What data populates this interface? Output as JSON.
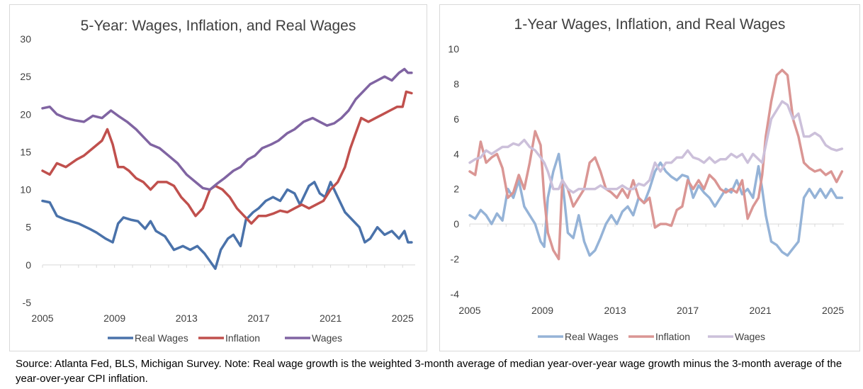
{
  "chart_data": [
    {
      "type": "line",
      "title": "5-Year: Wages, Inflation, and Real Wages",
      "xlabel": "",
      "ylabel": "",
      "xlim": [
        2005,
        2025.7
      ],
      "ylim": [
        -5,
        30
      ],
      "y_ticks": [
        "-5",
        "0",
        "5",
        "10",
        "15",
        "20",
        "25",
        "30"
      ],
      "x_ticks": [
        "2005",
        "2009",
        "2013",
        "2017",
        "2021",
        "2025"
      ],
      "legend_position": "bottom",
      "series": [
        {
          "name": "Real Wages",
          "color": "#4a72aa",
          "x": [
            2005,
            2005.4,
            2005.8,
            2006.3,
            2007,
            2007.6,
            2008,
            2008.5,
            2008.9,
            2009.2,
            2009.5,
            2009.9,
            2010.3,
            2010.7,
            2011,
            2011.3,
            2011.8,
            2012.3,
            2012.8,
            2013.2,
            2013.6,
            2014.0,
            2014.3,
            2014.6,
            2014.9,
            2015.3,
            2015.6,
            2016.0,
            2016.3,
            2016.7,
            2017.0,
            2017.4,
            2017.8,
            2018.2,
            2018.6,
            2019.0,
            2019.3,
            2019.8,
            2020.1,
            2020.4,
            2020.7,
            2021.0,
            2021.4,
            2021.8,
            2022.2,
            2022.6,
            2022.9,
            2023.2,
            2023.6,
            2024.0,
            2024.4,
            2024.8,
            2025.1,
            2025.3,
            2025.5
          ],
          "values": [
            8.5,
            8.3,
            6.5,
            6.0,
            5.5,
            4.8,
            4.3,
            3.5,
            3.0,
            5.5,
            6.3,
            6.0,
            5.8,
            4.8,
            5.8,
            4.5,
            3.8,
            2.0,
            2.5,
            2.0,
            2.5,
            1.5,
            0.5,
            -0.5,
            2.0,
            3.5,
            4.0,
            2.5,
            6.0,
            7.0,
            7.5,
            8.5,
            9.0,
            8.5,
            10.0,
            9.5,
            8.0,
            10.5,
            11.0,
            9.5,
            9.0,
            11.0,
            9.0,
            7.0,
            6.0,
            5.0,
            3.0,
            3.5,
            5.0,
            4.0,
            4.5,
            3.5,
            4.5,
            3.0,
            3.0
          ]
        },
        {
          "name": "Inflation",
          "color": "#c0504d",
          "x": [
            2005,
            2005.4,
            2005.8,
            2006.3,
            2006.9,
            2007.3,
            2007.8,
            2008.3,
            2008.6,
            2008.9,
            2009.2,
            2009.5,
            2009.8,
            2010.2,
            2010.6,
            2011.0,
            2011.4,
            2011.9,
            2012.3,
            2012.7,
            2013.1,
            2013.5,
            2013.9,
            2014.3,
            2014.6,
            2015.0,
            2015.4,
            2015.8,
            2016.2,
            2016.6,
            2017.0,
            2017.4,
            2017.8,
            2018.2,
            2018.6,
            2019.0,
            2019.4,
            2019.8,
            2020.2,
            2020.6,
            2021.0,
            2021.4,
            2021.8,
            2022.1,
            2022.4,
            2022.7,
            2023.1,
            2023.5,
            2023.9,
            2024.3,
            2024.7,
            2025.0,
            2025.2,
            2025.5
          ],
          "values": [
            12.5,
            12.0,
            13.5,
            13.0,
            14.0,
            14.5,
            15.5,
            16.5,
            18.0,
            16.0,
            13.0,
            13.0,
            12.5,
            11.5,
            11.0,
            10.0,
            11.0,
            11.0,
            10.5,
            9.0,
            8.0,
            6.5,
            7.5,
            10.0,
            10.5,
            10.0,
            9.0,
            7.5,
            6.5,
            5.5,
            6.5,
            6.5,
            6.8,
            7.2,
            7.0,
            7.5,
            8.0,
            7.5,
            8.0,
            8.5,
            10.0,
            11.0,
            13.0,
            15.5,
            17.5,
            19.5,
            19.0,
            19.5,
            20.0,
            20.5,
            21.0,
            21.0,
            23.0,
            22.8
          ]
        },
        {
          "name": "Wages",
          "color": "#8064a2",
          "x": [
            2005,
            2005.4,
            2005.8,
            2006.3,
            2006.8,
            2007.3,
            2007.8,
            2008.3,
            2008.8,
            2009.2,
            2009.7,
            2010.2,
            2010.6,
            2011.0,
            2011.5,
            2012.0,
            2012.5,
            2013.0,
            2013.5,
            2013.9,
            2014.3,
            2014.7,
            2015.1,
            2015.6,
            2016.0,
            2016.4,
            2016.8,
            2017.2,
            2017.7,
            2018.1,
            2018.6,
            2019.0,
            2019.5,
            2020.0,
            2020.4,
            2020.8,
            2021.2,
            2021.6,
            2022.0,
            2022.4,
            2022.8,
            2023.2,
            2023.6,
            2024.0,
            2024.4,
            2024.8,
            2025.1,
            2025.3,
            2025.5
          ],
          "values": [
            20.8,
            21.0,
            20.0,
            19.5,
            19.2,
            19.0,
            19.8,
            19.5,
            20.5,
            19.8,
            19.0,
            18.0,
            17.0,
            16.0,
            15.5,
            14.5,
            13.5,
            12.0,
            11.0,
            10.2,
            10.0,
            10.8,
            11.5,
            12.5,
            13.0,
            14.0,
            14.5,
            15.5,
            16.0,
            16.5,
            17.5,
            18.0,
            19.0,
            19.5,
            19.0,
            18.5,
            18.8,
            19.5,
            20.5,
            22.0,
            23.0,
            24.0,
            24.5,
            25.0,
            24.5,
            25.5,
            26.0,
            25.5,
            25.5
          ]
        }
      ]
    },
    {
      "type": "line",
      "title": "1-Year Wages, Inflation, and Real Wages",
      "xlabel": "",
      "ylabel": "",
      "xlim": [
        2005,
        2025.6
      ],
      "ylim": [
        -4,
        10
      ],
      "y_ticks": [
        "-4",
        "-2",
        "0",
        "2",
        "4",
        "6",
        "8",
        "10"
      ],
      "x_ticks": [
        "2005",
        "2009",
        "2013",
        "2017",
        "2021",
        "2025"
      ],
      "legend_position": "bottom",
      "series": [
        {
          "name": "Real Wages",
          "color": "#95b3d7",
          "x": [
            2005,
            2005.3,
            2005.6,
            2005.9,
            2006.2,
            2006.5,
            2006.8,
            2007.1,
            2007.4,
            2007.7,
            2008.0,
            2008.3,
            2008.6,
            2008.9,
            2009.1,
            2009.3,
            2009.6,
            2009.9,
            2010.1,
            2010.4,
            2010.7,
            2011.0,
            2011.3,
            2011.6,
            2011.9,
            2012.2,
            2012.5,
            2012.8,
            2013.1,
            2013.4,
            2013.7,
            2014.0,
            2014.3,
            2014.6,
            2014.9,
            2015.2,
            2015.5,
            2015.8,
            2016.1,
            2016.4,
            2016.7,
            2017.0,
            2017.3,
            2017.6,
            2017.9,
            2018.2,
            2018.5,
            2018.8,
            2019.1,
            2019.4,
            2019.7,
            2020.0,
            2020.3,
            2020.6,
            2020.9,
            2021.1,
            2021.3,
            2021.6,
            2021.9,
            2022.2,
            2022.5,
            2022.8,
            2023.1,
            2023.4,
            2023.7,
            2024.0,
            2024.3,
            2024.6,
            2024.9,
            2025.2,
            2025.5
          ],
          "values": [
            0.5,
            0.3,
            0.8,
            0.5,
            0.0,
            0.6,
            0.2,
            2.0,
            1.5,
            2.5,
            1.0,
            0.5,
            0.0,
            -1.0,
            -1.3,
            1.5,
            3.0,
            4.0,
            2.5,
            -0.5,
            -0.8,
            0.5,
            -1.0,
            -1.8,
            -1.5,
            -0.8,
            0.0,
            0.5,
            0.0,
            0.7,
            1.0,
            0.5,
            1.5,
            1.2,
            2.0,
            3.0,
            3.5,
            3.0,
            2.7,
            2.5,
            2.8,
            2.7,
            1.5,
            2.2,
            1.8,
            1.5,
            1.0,
            1.5,
            2.0,
            1.8,
            2.5,
            1.7,
            2.0,
            1.5,
            3.3,
            2.0,
            0.5,
            -1.0,
            -1.2,
            -1.6,
            -1.8,
            -1.4,
            -1.0,
            1.5,
            2.0,
            1.5,
            2.0,
            1.5,
            2.0,
            1.5,
            1.5
          ]
        },
        {
          "name": "Inflation",
          "color": "#da9694",
          "x": [
            2005,
            2005.3,
            2005.6,
            2005.9,
            2006.2,
            2006.5,
            2006.8,
            2007.1,
            2007.4,
            2007.7,
            2008.0,
            2008.3,
            2008.6,
            2008.9,
            2009.1,
            2009.3,
            2009.6,
            2009.9,
            2010.1,
            2010.4,
            2010.7,
            2011.0,
            2011.3,
            2011.6,
            2011.9,
            2012.2,
            2012.5,
            2012.8,
            2013.1,
            2013.4,
            2013.7,
            2014.0,
            2014.3,
            2014.6,
            2014.9,
            2015.2,
            2015.5,
            2015.8,
            2016.1,
            2016.4,
            2016.7,
            2017.0,
            2017.3,
            2017.6,
            2017.9,
            2018.2,
            2018.5,
            2018.8,
            2019.1,
            2019.4,
            2019.7,
            2020.0,
            2020.3,
            2020.6,
            2020.9,
            2021.1,
            2021.3,
            2021.6,
            2021.9,
            2022.2,
            2022.5,
            2022.8,
            2023.1,
            2023.4,
            2023.7,
            2024.0,
            2024.3,
            2024.6,
            2024.9,
            2025.2,
            2025.5
          ],
          "values": [
            3.0,
            2.8,
            4.7,
            3.5,
            3.8,
            4.0,
            3.2,
            1.5,
            1.8,
            2.8,
            2.0,
            3.5,
            5.3,
            4.5,
            1.5,
            -0.5,
            -1.5,
            -2.0,
            2.5,
            2.0,
            1.0,
            1.5,
            2.0,
            3.5,
            3.8,
            3.0,
            2.0,
            1.8,
            1.5,
            2.0,
            1.5,
            2.5,
            1.5,
            1.2,
            1.5,
            -0.2,
            0.0,
            0.0,
            -0.1,
            0.8,
            1.0,
            2.5,
            2.0,
            2.5,
            2.0,
            2.8,
            2.5,
            2.0,
            1.8,
            2.0,
            1.8,
            2.5,
            0.3,
            1.0,
            1.5,
            2.8,
            5.0,
            7.0,
            8.5,
            8.8,
            8.5,
            6.0,
            5.0,
            3.5,
            3.2,
            3.0,
            3.1,
            2.8,
            3.0,
            2.4,
            3.0
          ]
        },
        {
          "name": "Wages",
          "color": "#ccc0da",
          "x": [
            2005,
            2005.3,
            2005.6,
            2005.9,
            2006.2,
            2006.5,
            2006.8,
            2007.1,
            2007.4,
            2007.7,
            2008.0,
            2008.3,
            2008.6,
            2008.9,
            2009.1,
            2009.3,
            2009.6,
            2009.9,
            2010.1,
            2010.4,
            2010.7,
            2011.0,
            2011.3,
            2011.6,
            2011.9,
            2012.2,
            2012.5,
            2012.8,
            2013.1,
            2013.4,
            2013.7,
            2014.0,
            2014.3,
            2014.6,
            2014.9,
            2015.2,
            2015.5,
            2015.8,
            2016.1,
            2016.4,
            2016.7,
            2017.0,
            2017.3,
            2017.6,
            2017.9,
            2018.2,
            2018.5,
            2018.8,
            2019.1,
            2019.4,
            2019.7,
            2020.0,
            2020.3,
            2020.6,
            2020.9,
            2021.1,
            2021.3,
            2021.6,
            2021.9,
            2022.2,
            2022.5,
            2022.8,
            2023.1,
            2023.4,
            2023.7,
            2024.0,
            2024.3,
            2024.6,
            2024.9,
            2025.2,
            2025.5
          ],
          "values": [
            3.5,
            3.7,
            3.8,
            4.2,
            4.0,
            4.2,
            4.4,
            4.4,
            4.6,
            4.5,
            4.8,
            4.4,
            4.2,
            3.8,
            3.5,
            3.0,
            2.0,
            2.0,
            2.5,
            2.0,
            1.8,
            2.0,
            2.0,
            2.0,
            2.0,
            2.2,
            2.0,
            2.0,
            2.0,
            2.2,
            2.0,
            2.0,
            2.3,
            2.2,
            2.5,
            3.5,
            3.0,
            3.5,
            3.5,
            3.8,
            3.8,
            4.2,
            3.8,
            3.7,
            3.5,
            3.8,
            3.5,
            3.7,
            3.7,
            4.0,
            3.8,
            4.0,
            3.5,
            4.0,
            3.7,
            3.5,
            4.5,
            6.0,
            6.5,
            7.0,
            6.8,
            6.0,
            6.3,
            5.0,
            5.0,
            5.2,
            5.0,
            4.5,
            4.3,
            4.2,
            4.3
          ]
        }
      ]
    }
  ],
  "footnote": "Source: Atlanta Fed, BLS, Michigan Survey. Note: Real wage growth is the weighted 3-month average of median year-over-year wage growth minus the 3-month average of the year-over-year CPI inflation."
}
